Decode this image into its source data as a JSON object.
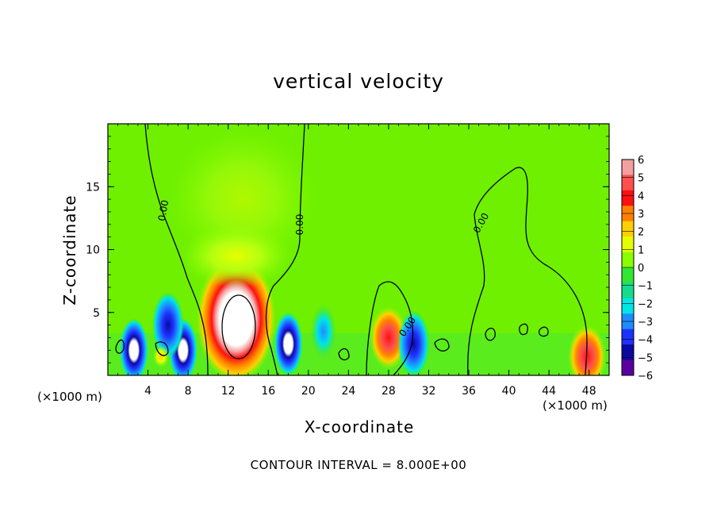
{
  "chart_data": {
    "type": "heatmap",
    "title": "vertical velocity",
    "xlabel": "X-coordinate",
    "ylabel": "Z-coordinate",
    "x_unit_left": "(×1000 m)",
    "x_unit_right": "(×1000 m)",
    "note": "CONTOUR INTERVAL = 8.000E+00",
    "xlim": [
      0,
      50
    ],
    "ylim": [
      0,
      20
    ],
    "x_ticks": [
      "4",
      "8",
      "12",
      "16",
      "20",
      "24",
      "28",
      "32",
      "36",
      "40",
      "44",
      "48"
    ],
    "y_ticks": [
      "5",
      "10",
      "15"
    ],
    "contour_labels": [
      "0.00",
      "0.00",
      "0.00",
      "0.00"
    ],
    "colorbar": {
      "labels": [
        "6",
        "5",
        "4",
        "3",
        "2",
        "1",
        "0",
        "−1",
        "−2",
        "−3",
        "−4",
        "−5",
        "−6"
      ],
      "colors": [
        "#f4a0a0",
        "#ff5050",
        "#ff1010",
        "#ff8000",
        "#ffd000",
        "#e6ff00",
        "#8aff00",
        "#32e632",
        "#14dc8c",
        "#00e6e6",
        "#1e8cff",
        "#1e32ff",
        "#0a0aa0",
        "#5a00a0"
      ]
    },
    "features": [
      {
        "kind": "updraft",
        "x": 12.8,
        "z": 4.5,
        "peak": "above 6"
      },
      {
        "kind": "weak updraft",
        "x": 12.8,
        "z": 9.5,
        "peak": 1
      },
      {
        "kind": "downdraft",
        "x": 18.0,
        "z": 2.5,
        "peak": "below -6"
      },
      {
        "kind": "downdraft",
        "x": 7.5,
        "z": 2.0,
        "peak": "below -6"
      },
      {
        "kind": "downdraft",
        "x": 6.0,
        "z": 4.0,
        "peak": -5
      },
      {
        "kind": "downdraft",
        "x": 2.6,
        "z": 2.0,
        "peak": "below -6"
      },
      {
        "kind": "downdraft",
        "x": 21.5,
        "z": 3.5,
        "peak": -4
      },
      {
        "kind": "updraft",
        "x": 28.0,
        "z": 3.0,
        "peak": 5
      },
      {
        "kind": "downdraft",
        "x": 30.5,
        "z": 2.5,
        "peak": -5
      },
      {
        "kind": "updraft",
        "x": 47.8,
        "z": 1.5,
        "peak": 5
      },
      {
        "kind": "updraft",
        "x": 5.3,
        "z": 1.5,
        "peak": 3
      }
    ]
  }
}
